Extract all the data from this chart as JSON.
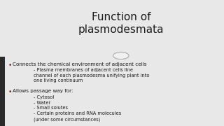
{
  "title": "Function of\nplasmodesmata",
  "title_fontsize": 11,
  "title_color": "#1a1a1a",
  "bg_top": "#e8e8e8",
  "bg_bottom": "#c8cdd4",
  "sidebar_color": "#2a2a2a",
  "bullet1": "Connects the chemical environment of adjacent cells",
  "sub1": "- Plasma membranes of adjacent cells line\nchannel of each plasmodesma unifying plant into\none living continuum",
  "bullet2": "Allows passage way for:",
  "sub2": "- Cytosol\n- Water\n- Small solutes\n- Certain proteins and RNA molecules\n(under some circumstances)",
  "bullet_color": "#8b1a1a",
  "text_color": "#1a1a1a",
  "body_fontsize": 5.2,
  "circle_color": "#cccccc"
}
